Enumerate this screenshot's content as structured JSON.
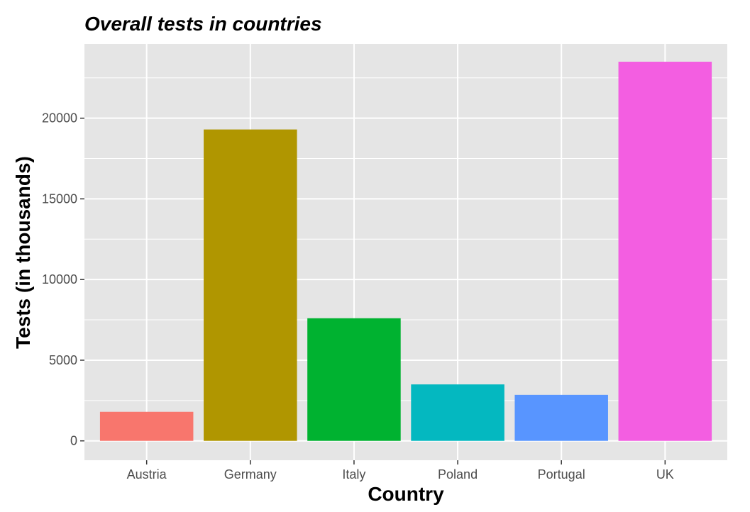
{
  "chart_data": {
    "type": "bar",
    "title": "Overall tests in countries",
    "xlabel": "Country",
    "ylabel": "Tests (in thousands)",
    "categories": [
      "Austria",
      "Germany",
      "Italy",
      "Poland",
      "Portugal",
      "UK"
    ],
    "values": [
      1800,
      19300,
      7600,
      3500,
      2850,
      23500
    ],
    "colors": [
      "#F8766D",
      "#B09600",
      "#00B230",
      "#04B8C0",
      "#5895FF",
      "#F35EE1"
    ],
    "ylim": [
      -1200,
      24600
    ],
    "yticks": [
      0,
      5000,
      10000,
      15000,
      20000
    ],
    "ytick_labels": [
      "0",
      "5000",
      "10000",
      "15000",
      "20000"
    ],
    "grid": true,
    "panel_background": "#E5E5E5",
    "grid_color": "#FFFFFF",
    "legend": "none"
  }
}
